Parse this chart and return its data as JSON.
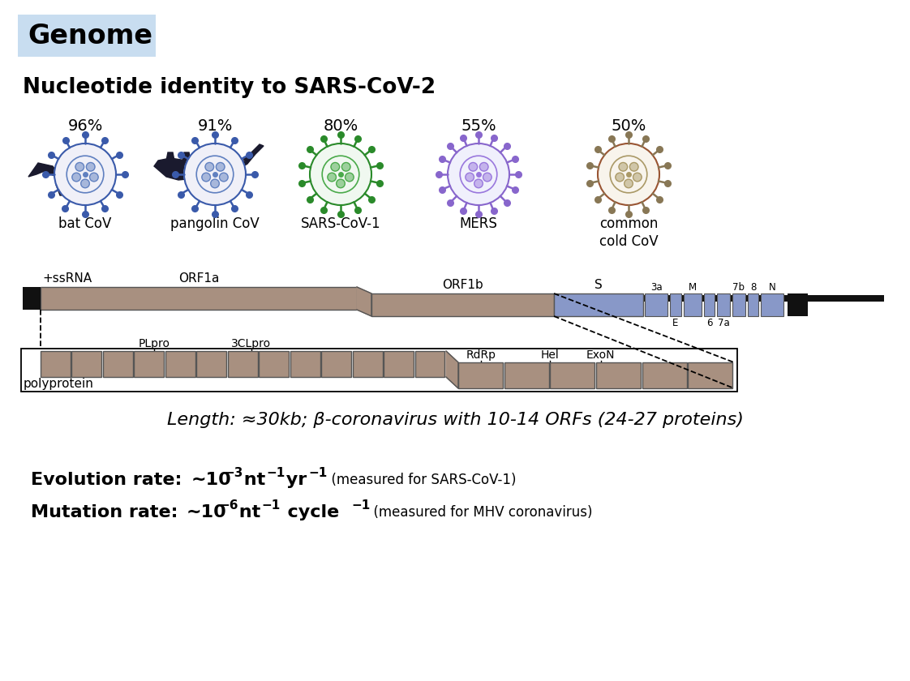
{
  "title_genome": "Genome",
  "title_nucleotide": "Nucleotide identity to SARS-CoV-2",
  "virus_labels": [
    "bat CoV",
    "pangolin CoV",
    "SARS-CoV-1",
    "MERS",
    "common\ncold CoV"
  ],
  "virus_percentages": [
    "96%",
    "91%",
    "80%",
    "55%",
    "50%"
  ],
  "genome_bar_color": "#a89080",
  "genome_blue_color": "#8898c8",
  "genome_black_color": "#111111",
  "genome_bg": "#ffffff",
  "title_bg": "#c8ddf0",
  "length_text": "Length: ≈30kb; β-coronavirus with 10-14 ORFs (24-27 proteins)",
  "virus_configs": [
    {
      "body": "#f0f0f8",
      "spike": "#3a5aaa",
      "inner": "#6080c0",
      "outline": "#3a5aaa",
      "n_spikes": 12
    },
    {
      "body": "#f0f0f8",
      "spike": "#3a5aaa",
      "inner": "#6080c0",
      "outline": "#3a5aaa",
      "n_spikes": 12
    },
    {
      "body": "#f0f8f0",
      "spike": "#2a8a2a",
      "inner": "#4aaa4a",
      "outline": "#2a8a2a",
      "n_spikes": 14
    },
    {
      "body": "#f0f0fc",
      "spike": "#8866cc",
      "inner": "#9977dd",
      "outline": "#8866cc",
      "n_spikes": 16
    },
    {
      "body": "#f8f4ec",
      "spike": "#887755",
      "inner": "#aa9966",
      "outline": "#995533",
      "n_spikes": 14
    }
  ]
}
